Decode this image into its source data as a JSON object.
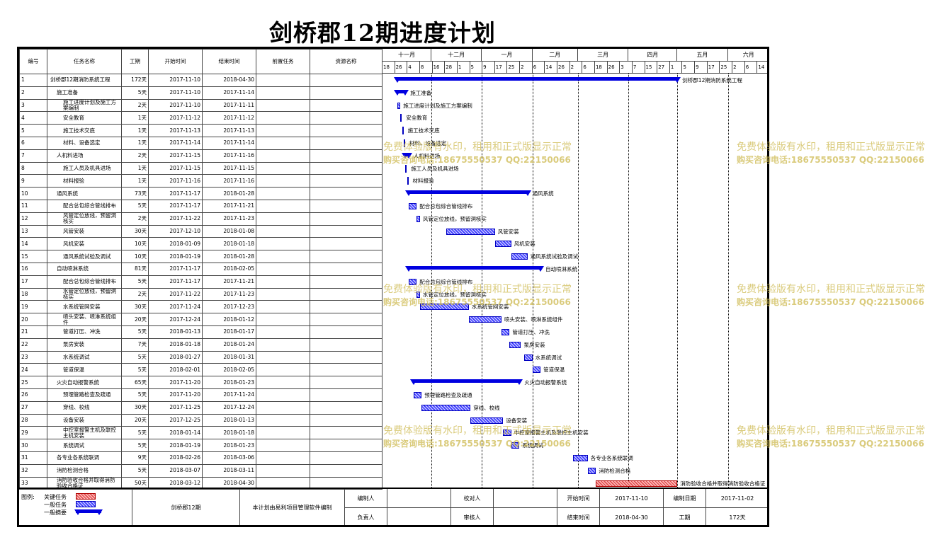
{
  "title": "剑桥郡12期进度计划",
  "headers": [
    "编号",
    "任务名称",
    "工期",
    "开始时间",
    "结束时间",
    "前置任务",
    "资源名称"
  ],
  "timescale": {
    "months": [
      "十一月",
      "十二月",
      "一月",
      "二月",
      "三月",
      "四月",
      "五月",
      "六月"
    ],
    "day_ticks": [
      "18",
      "26",
      "4",
      "8",
      "16",
      "28",
      "1",
      "5",
      "9",
      "17",
      "25",
      "2",
      "6",
      "14",
      "26",
      "2",
      "6",
      "18",
      "26",
      "3",
      "7",
      "15",
      "27",
      "1",
      "5",
      "9",
      "17",
      "25",
      "2",
      "6",
      "14"
    ]
  },
  "tasks": [
    {
      "id": "1",
      "name": "剑桥郡12期消防系统工程",
      "duration": "172天",
      "start": "2017-11-10",
      "end": "2018-04-30",
      "level": 0,
      "kind": "summary",
      "label": "剑桥郡12期消防系统工程"
    },
    {
      "id": "2",
      "name": "施工准备",
      "duration": "5天",
      "start": "2017-11-10",
      "end": "2017-11-14",
      "level": 1,
      "kind": "summary",
      "label": "施工准备"
    },
    {
      "id": "3",
      "name": "施工进度计划及施工方案编制",
      "duration": "2天",
      "start": "2017-11-10",
      "end": "2017-11-11",
      "level": 2,
      "kind": "task",
      "label": "施工进度计划及施工方案编制"
    },
    {
      "id": "4",
      "name": "安全教育",
      "duration": "1天",
      "start": "2017-11-12",
      "end": "2017-11-12",
      "level": 2,
      "kind": "task",
      "label": "安全教育"
    },
    {
      "id": "5",
      "name": "施工技术交底",
      "duration": "1天",
      "start": "2017-11-13",
      "end": "2017-11-13",
      "level": 2,
      "kind": "task",
      "label": "施工技术交底"
    },
    {
      "id": "6",
      "name": "材料、设备选定",
      "duration": "1天",
      "start": "2017-11-14",
      "end": "2017-11-14",
      "level": 2,
      "kind": "task",
      "label": "材料、设备选定"
    },
    {
      "id": "7",
      "name": "人机料进场",
      "duration": "2天",
      "start": "2017-11-15",
      "end": "2017-11-16",
      "level": 1,
      "kind": "summary",
      "label": "人机料进场"
    },
    {
      "id": "8",
      "name": "施工人员及机具进场",
      "duration": "1天",
      "start": "2017-11-15",
      "end": "2017-11-15",
      "level": 2,
      "kind": "task",
      "label": "施工人员及机具进场"
    },
    {
      "id": "9",
      "name": "材料报验",
      "duration": "1天",
      "start": "2017-11-16",
      "end": "2017-11-16",
      "level": 2,
      "kind": "task",
      "label": "材料报验"
    },
    {
      "id": "10",
      "name": "通风系统",
      "duration": "73天",
      "start": "2017-11-17",
      "end": "2018-01-28",
      "level": 1,
      "kind": "summary",
      "label": "通风系统"
    },
    {
      "id": "11",
      "name": "配合总包综合管线排布",
      "duration": "5天",
      "start": "2017-11-17",
      "end": "2017-11-21",
      "level": 2,
      "kind": "task",
      "label": "配合总包综合管线排布"
    },
    {
      "id": "12",
      "name": "风管定位放线，预留洞核实",
      "duration": "2天",
      "start": "2017-11-22",
      "end": "2017-11-23",
      "level": 2,
      "kind": "task",
      "label": "风管定位放线，预留洞核实"
    },
    {
      "id": "13",
      "name": "风管安装",
      "duration": "30天",
      "start": "2017-12-10",
      "end": "2018-01-08",
      "level": 2,
      "kind": "task",
      "label": "风管安装"
    },
    {
      "id": "14",
      "name": "风机安装",
      "duration": "10天",
      "start": "2018-01-09",
      "end": "2018-01-18",
      "level": 2,
      "kind": "task",
      "label": "风机安装"
    },
    {
      "id": "15",
      "name": "通风系统试验及调试",
      "duration": "10天",
      "start": "2018-01-19",
      "end": "2018-01-28",
      "level": 2,
      "kind": "task",
      "label": "通风系统试验及调试"
    },
    {
      "id": "16",
      "name": "自动喷淋系统",
      "duration": "81天",
      "start": "2017-11-17",
      "end": "2018-02-05",
      "level": 1,
      "kind": "summary",
      "label": "自动喷淋系统"
    },
    {
      "id": "17",
      "name": "配合总包综合管线排布",
      "duration": "5天",
      "start": "2017-11-17",
      "end": "2017-11-21",
      "level": 2,
      "kind": "task",
      "label": "配合总包综合管线排布"
    },
    {
      "id": "18",
      "name": "水管定位放线，预留洞核实",
      "duration": "2天",
      "start": "2017-11-22",
      "end": "2017-11-23",
      "level": 2,
      "kind": "task",
      "label": "水管定位放线，预留洞核实"
    },
    {
      "id": "19",
      "name": "水系统管网安装",
      "duration": "30天",
      "start": "2017-11-24",
      "end": "2017-12-23",
      "level": 2,
      "kind": "task",
      "label": "水系统管网安装"
    },
    {
      "id": "20",
      "name": "喷头安装、喷淋系统组件",
      "duration": "20天",
      "start": "2017-12-24",
      "end": "2018-01-12",
      "level": 2,
      "kind": "task",
      "label": "喷头安装、喷淋系统组件"
    },
    {
      "id": "21",
      "name": "管道打压、冲洗",
      "duration": "5天",
      "start": "2018-01-13",
      "end": "2018-01-17",
      "level": 2,
      "kind": "task",
      "label": "管道打压、冲洗"
    },
    {
      "id": "22",
      "name": "泵房安装",
      "duration": "7天",
      "start": "2018-01-18",
      "end": "2018-01-24",
      "level": 2,
      "kind": "task",
      "label": "泵房安装"
    },
    {
      "id": "23",
      "name": "水系统调试",
      "duration": "5天",
      "start": "2018-01-27",
      "end": "2018-01-31",
      "level": 2,
      "kind": "task",
      "label": "水系统调试"
    },
    {
      "id": "24",
      "name": "管道保温",
      "duration": "5天",
      "start": "2018-02-01",
      "end": "2018-02-05",
      "level": 2,
      "kind": "task",
      "label": "管道保温"
    },
    {
      "id": "25",
      "name": "火灾自动报警系统",
      "duration": "65天",
      "start": "2017-11-20",
      "end": "2018-01-23",
      "level": 1,
      "kind": "summary",
      "label": "火灾自动报警系统"
    },
    {
      "id": "26",
      "name": "预埋管路检查及疏通",
      "duration": "5天",
      "start": "2017-11-20",
      "end": "2017-11-24",
      "level": 2,
      "kind": "task",
      "label": "预埋管路检查及疏通"
    },
    {
      "id": "27",
      "name": "穿线、校线",
      "duration": "30天",
      "start": "2017-11-25",
      "end": "2017-12-24",
      "level": 2,
      "kind": "task",
      "label": "穿线、校线"
    },
    {
      "id": "28",
      "name": "设备安装",
      "duration": "20天",
      "start": "2017-12-25",
      "end": "2018-01-13",
      "level": 2,
      "kind": "task",
      "label": "设备安装"
    },
    {
      "id": "29",
      "name": "中控室报警主机及联控主机安装",
      "duration": "5天",
      "start": "2018-01-14",
      "end": "2018-01-18",
      "level": 2,
      "kind": "task",
      "label": "中控室报警主机及联控主机安装"
    },
    {
      "id": "30",
      "name": "系统调试",
      "duration": "5天",
      "start": "2018-01-19",
      "end": "2018-01-23",
      "level": 2,
      "kind": "task",
      "label": "系统调试"
    },
    {
      "id": "31",
      "name": "各专业各系统联调",
      "duration": "9天",
      "start": "2018-02-26",
      "end": "2018-03-06",
      "level": 1,
      "kind": "task",
      "label": "各专业各系统联调"
    },
    {
      "id": "32",
      "name": "消防检测合格",
      "duration": "5天",
      "start": "2018-03-07",
      "end": "2018-03-11",
      "level": 1,
      "kind": "task",
      "label": "消防检测合格"
    },
    {
      "id": "33",
      "name": "消防验收合格并取得消防验收合格证",
      "duration": "50天",
      "start": "2018-03-12",
      "end": "2018-04-30",
      "level": 1,
      "kind": "critical",
      "label": "消防验收合格并取得消防验收合格证"
    }
  ],
  "footer": {
    "legend_title": "图例:",
    "legend_items": [
      "关键任务",
      "一般任务",
      "一般摘要"
    ],
    "project_name": "剑桥郡12期",
    "software_note": "本计划由易利项目管理软件编制",
    "labels": {
      "prepared_by": "编制人",
      "checked_by": "校对人",
      "responsible": "负责人",
      "approved_by": "审核人",
      "start_time": "开始时间",
      "end_time": "结束时间",
      "prepared_date": "编制日期",
      "duration": "工期"
    },
    "values": {
      "start_time": "2017-11-10",
      "end_time": "2018-04-30",
      "prepared_date": "2017-11-02",
      "duration": "172天"
    }
  },
  "watermark": {
    "line1": "免费体验版有水印，租用和正式版显示正常",
    "line2": "购买咨询电话:18675550537 QQ:22150066"
  },
  "colors": {
    "summary": "#0000e0",
    "task": "#3b3bff",
    "critical": "#e05050",
    "watermark": "#cdb950"
  }
}
